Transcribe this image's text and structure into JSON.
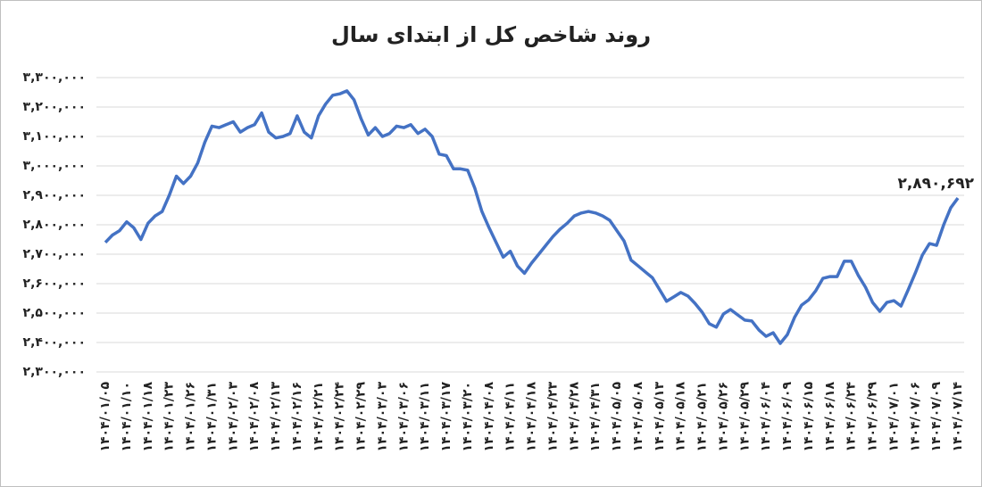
{
  "chart_data": {
    "type": "line",
    "title": "روند شاخص کل از ابتدای سال",
    "categories": [
      "۱۴۰۴/۰۱/۰۵",
      null,
      null,
      "۱۴۰۴/۰۱/۱۰",
      null,
      null,
      "۱۴۰۴/۰۱/۱۸",
      null,
      null,
      "۱۴۰۴/۰۱/۲۳",
      null,
      null,
      "۱۴۰۴/۰۱/۲۶",
      null,
      null,
      "۱۴۰۴/۰۱/۳۱",
      null,
      null,
      "۱۴۰۴/۰۲/۰۳",
      null,
      null,
      "۱۴۰۴/۰۲/۰۸",
      null,
      null,
      "۱۴۰۴/۰۲/۱۳",
      null,
      null,
      "۱۴۰۴/۰۲/۱۶",
      null,
      null,
      "۱۴۰۴/۰۲/۲۱",
      null,
      null,
      "۱۴۰۴/۰۲/۲۴",
      null,
      null,
      "۱۴۰۴/۰۲/۲۹",
      null,
      null,
      "۱۴۰۴/۰۳/۰۳",
      null,
      null,
      "۱۴۰۴/۰۳/۰۶",
      null,
      null,
      "۱۴۰۴/۰۳/۱۱",
      null,
      null,
      "۱۴۰۴/۰۳/۱۷",
      null,
      null,
      "۱۴۰۴/۰۳/۲۰",
      null,
      null,
      "۱۴۰۴/۰۴/۰۸",
      null,
      null,
      "۱۴۰۴/۰۴/۱۱",
      null,
      null,
      "۱۴۰۴/۰۴/۱۸",
      null,
      null,
      "۱۴۰۴/۰۴/۲۳",
      null,
      null,
      "۱۴۰۴/۰۴/۲۸",
      null,
      null,
      "۱۴۰۴/۰۴/۳۱",
      null,
      null,
      "۱۴۰۴/۰۵/۰۵",
      null,
      null,
      "۱۴۰۴/۰۵/۰۸",
      null,
      null,
      "۱۴۰۴/۰۵/۱۳",
      null,
      null,
      "۱۴۰۴/۰۵/۱۸",
      null,
      null,
      "۱۴۰۴/۰۵/۲۱",
      null,
      null,
      "۱۴۰۴/۰۵/۲۶",
      null,
      null,
      "۱۴۰۴/۰۵/۲۹",
      null,
      null,
      "۱۴۰۴/۰۶/۰۴",
      null,
      null,
      "۱۴۰۴/۰۶/۰۹",
      null,
      null,
      "۱۴۰۴/۰۶/۱۵",
      null,
      null,
      "۱۴۰۴/۰۶/۱۸",
      null,
      null,
      "۱۴۰۴/۰۶/۲۴",
      null,
      null,
      "۱۴۰۴/۰۶/۲۹",
      null,
      null,
      "۱۴۰۴/۰۷/۰۱",
      null,
      null,
      "۱۴۰۴/۰۷/۰۶",
      null,
      null,
      "۱۴۰۴/۰۷/۰۹",
      null,
      null,
      "۱۴۰۴/۰۷/۱۴"
    ],
    "values": [
      2740000,
      2765000,
      2780000,
      2810000,
      2790000,
      2750000,
      2805000,
      2830000,
      2845000,
      2900000,
      2965000,
      2940000,
      2965000,
      3010000,
      3080000,
      3135000,
      3130000,
      3140000,
      3150000,
      3115000,
      3130000,
      3140000,
      3180000,
      3115000,
      3095000,
      3100000,
      3110000,
      3170000,
      3115000,
      3095000,
      3170000,
      3210000,
      3240000,
      3245000,
      3255000,
      3225000,
      3160000,
      3105000,
      3130000,
      3100000,
      3110000,
      3135000,
      3130000,
      3140000,
      3110000,
      3125000,
      3100000,
      3040000,
      3035000,
      2990000,
      2990000,
      2985000,
      2925000,
      2845000,
      2790000,
      2740000,
      2690000,
      2710000,
      2660000,
      2635000,
      2670000,
      2700000,
      2730000,
      2760000,
      2785000,
      2805000,
      2830000,
      2840000,
      2845000,
      2840000,
      2830000,
      2815000,
      2780000,
      2745000,
      2680000,
      2660000,
      2640000,
      2620000,
      2580000,
      2540000,
      2555000,
      2570000,
      2558000,
      2533000,
      2503000,
      2464000,
      2452000,
      2497000,
      2512000,
      2494000,
      2476000,
      2473000,
      2442000,
      2421000,
      2433000,
      2397000,
      2427000,
      2485000,
      2527000,
      2545000,
      2576000,
      2618000,
      2624000,
      2624000,
      2676000,
      2676000,
      2627000,
      2588000,
      2536000,
      2506000,
      2536000,
      2542000,
      2524000,
      2579000,
      2636000,
      2697000,
      2736000,
      2730000,
      2800000,
      2858000,
      2890692
    ],
    "value_labels": [
      null,
      null,
      null,
      null,
      null,
      null,
      null,
      null,
      null,
      null,
      null,
      null,
      null,
      null,
      null,
      null,
      null,
      null,
      null,
      null,
      null,
      null,
      null,
      null,
      null,
      null,
      null,
      null,
      null,
      null,
      null,
      null,
      null,
      null,
      null,
      null,
      null,
      null,
      null,
      null,
      null,
      null,
      null,
      null,
      null,
      null,
      null,
      null,
      null,
      null,
      null,
      null,
      null,
      null,
      null,
      null,
      null,
      null,
      null,
      null,
      null,
      null,
      null,
      null,
      null,
      null,
      null,
      null,
      null,
      null,
      null,
      null,
      null,
      null,
      null,
      null,
      null,
      null,
      null,
      null,
      null,
      null,
      null,
      null,
      null,
      null,
      null,
      null,
      null,
      null,
      null,
      null,
      null,
      null,
      null,
      null,
      null,
      null,
      null,
      null,
      null,
      null,
      null,
      null,
      null,
      null,
      null,
      null,
      null,
      null,
      null,
      null,
      null,
      null,
      null,
      null,
      null,
      null,
      null,
      null,
      "۲,۸۹۰,۶۹۲"
    ],
    "color": "#4472c4",
    "ylim": [
      2300000,
      3300000
    ],
    "yticks": [
      {
        "value": 2300000,
        "label": "۲,۳۰۰,۰۰۰"
      },
      {
        "value": 2400000,
        "label": "۲,۴۰۰,۰۰۰"
      },
      {
        "value": 2500000,
        "label": "۲,۵۰۰,۰۰۰"
      },
      {
        "value": 2600000,
        "label": "۲,۶۰۰,۰۰۰"
      },
      {
        "value": 2700000,
        "label": "۲,۷۰۰,۰۰۰"
      },
      {
        "value": 2800000,
        "label": "۲,۸۰۰,۰۰۰"
      },
      {
        "value": 2900000,
        "label": "۲,۹۰۰,۰۰۰"
      },
      {
        "value": 3000000,
        "label": "۳,۰۰۰,۰۰۰"
      },
      {
        "value": 3100000,
        "label": "۳,۱۰۰,۰۰۰"
      },
      {
        "value": 3200000,
        "label": "۳,۲۰۰,۰۰۰"
      },
      {
        "value": 3300000,
        "label": "۳,۳۰۰,۰۰۰"
      }
    ],
    "grid": true
  }
}
